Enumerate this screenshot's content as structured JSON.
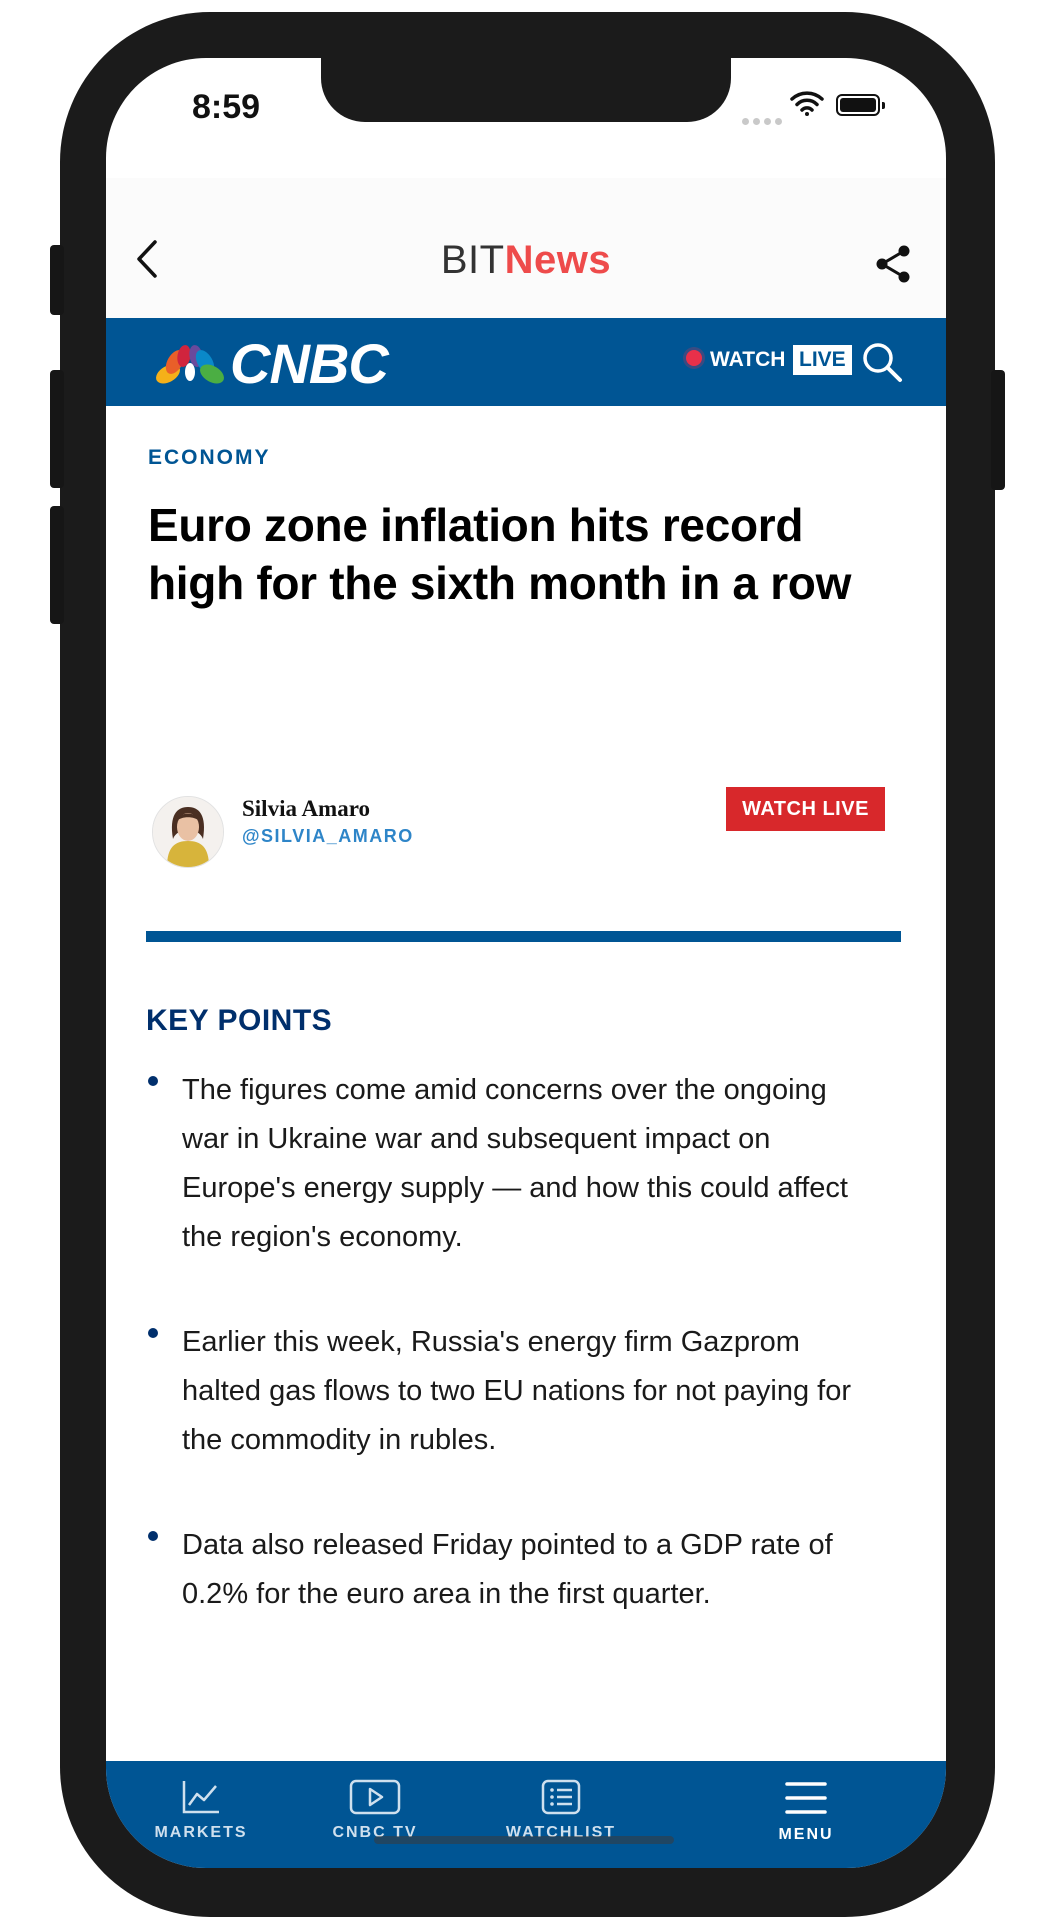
{
  "status_bar": {
    "time": "8:59"
  },
  "app_bar": {
    "brand_part1": "BIT",
    "brand_part2": "News"
  },
  "cnbc_header": {
    "logo_text": "CNBC",
    "watch_label": "WATCH",
    "live_label": "LIVE",
    "live_dot_color": "#e8304a"
  },
  "article": {
    "category": "ECONOMY",
    "headline": "Euro zone inflation hits record high for the sixth month in a row",
    "author": {
      "name": "Silvia Amaro",
      "handle": "@SILVIA_AMARO"
    },
    "watch_live_button": "WATCH LIVE",
    "key_points_title": "KEY POINTS",
    "key_points": [
      "The figures come amid concerns over the ongoing war in Ukraine war and subsequent impact on Europe's energy supply — and how this could affect the region's economy.",
      "Earlier this week, Russia's energy firm Gazprom halted gas flows to two EU nations for not paying for the commodity in rubles.",
      "Data also released Friday pointed to a GDP rate of 0.2% for the euro area in the first quarter."
    ]
  },
  "bottom_nav": {
    "markets": "MARKETS",
    "cnbc_tv": "CNBC TV",
    "watchlist": "WATCHLIST",
    "menu": "MENU"
  },
  "colors": {
    "cnbc_blue": "#005594",
    "navy": "#002f6c",
    "accent_red": "#d8282b",
    "brand_red": "#ee4b4b"
  }
}
